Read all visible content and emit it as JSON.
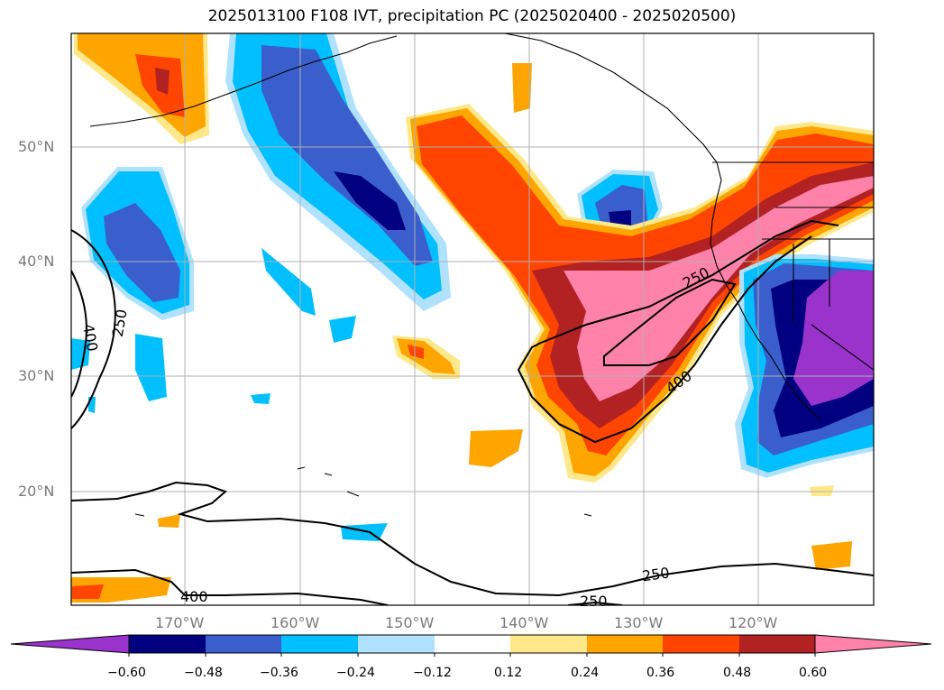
{
  "title": "2025013100 F108 IVT, precipitation PC (2025020400 - 2025020500)",
  "latitude_labels": [
    "50°N",
    "40°N",
    "30°N",
    "20°N"
  ],
  "longitude_labels": [
    "170°W",
    "160°W",
    "150°W",
    "140°W",
    "130°W",
    "120°W"
  ],
  "colorbar": {
    "tick_labels": [
      "−0.60",
      "−0.48",
      "−0.36",
      "−0.24",
      "−0.12",
      "0.12",
      "0.24",
      "0.36",
      "0.48",
      "0.60"
    ],
    "colors": [
      "#9933cc",
      "#000080",
      "#3a5fcd",
      "#00bfff",
      "#b0e2ff",
      "#ffffff",
      "#ffe88a",
      "#ffa500",
      "#ff4500",
      "#b22222",
      "#ff82ab"
    ]
  },
  "contour_labels": [
    "400",
    "250",
    "250",
    "400",
    "250",
    "400",
    "250"
  ],
  "colors": {
    "contour": "#000000",
    "grid": "#b0b0b0",
    "coast": "#000000"
  }
}
